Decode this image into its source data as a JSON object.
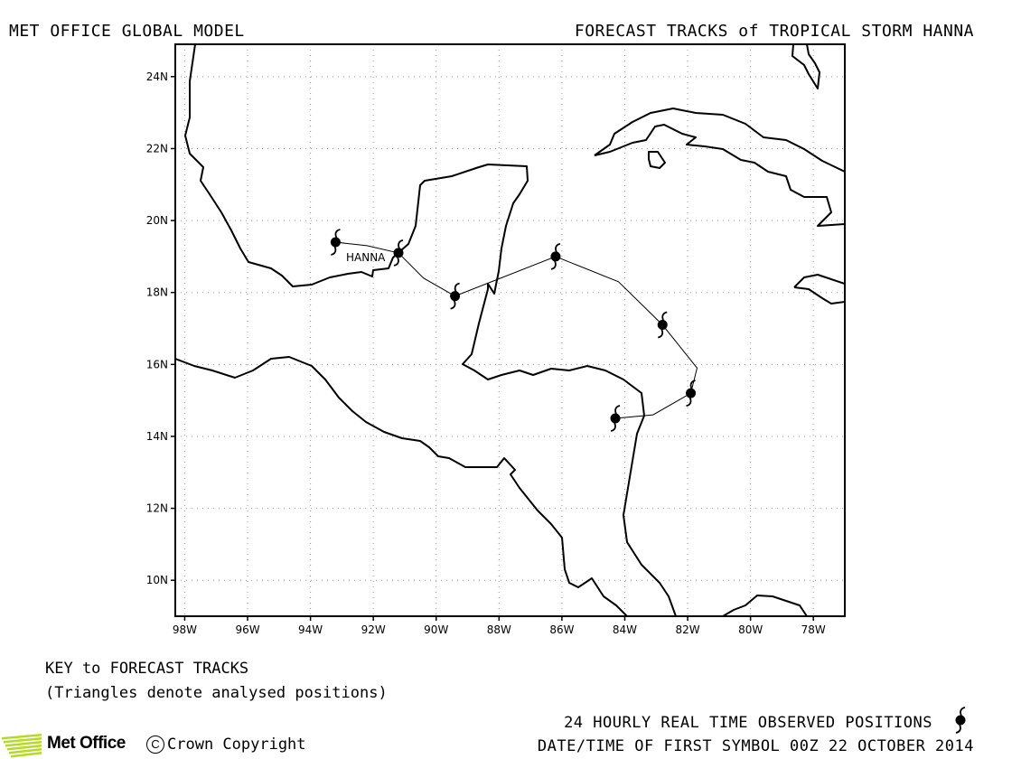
{
  "header": {
    "left_title": "MET OFFICE GLOBAL MODEL",
    "right_title": "FORECAST TRACKS of TROPICAL STORM HANNA"
  },
  "map": {
    "lon_range": [
      -98.3,
      -77.0
    ],
    "lat_range": [
      9.0,
      24.9
    ],
    "grid": true,
    "lat_ticks": [
      {
        "value": 24,
        "label": "24N"
      },
      {
        "value": 22,
        "label": "22N"
      },
      {
        "value": 20,
        "label": "20N"
      },
      {
        "value": 18,
        "label": "18N"
      },
      {
        "value": 16,
        "label": "16N"
      },
      {
        "value": 14,
        "label": "14N"
      },
      {
        "value": 12,
        "label": "12N"
      },
      {
        "value": 10,
        "label": "10N"
      }
    ],
    "lon_ticks": [
      {
        "value": -98,
        "label": "98W"
      },
      {
        "value": -96,
        "label": "96W"
      },
      {
        "value": -94,
        "label": "94W"
      },
      {
        "value": -92,
        "label": "92W"
      },
      {
        "value": -90,
        "label": "90W"
      },
      {
        "value": -88,
        "label": "88W"
      },
      {
        "value": -86,
        "label": "86W"
      },
      {
        "value": -84,
        "label": "84W"
      },
      {
        "value": -82,
        "label": "82W"
      },
      {
        "value": -80,
        "label": "80W"
      },
      {
        "value": -78,
        "label": "78W"
      }
    ],
    "storm_label": "HANNA",
    "observed_positions": [
      {
        "lon": -84.3,
        "lat": 14.5
      },
      {
        "lon": -81.9,
        "lat": 15.2
      },
      {
        "lon": -82.8,
        "lat": 17.1
      },
      {
        "lon": -86.2,
        "lat": 19.0
      },
      {
        "lon": -89.4,
        "lat": 17.9
      },
      {
        "lon": -91.2,
        "lat": 19.1
      },
      {
        "lon": -93.2,
        "lat": 19.4
      }
    ],
    "track_line": [
      {
        "lon": -84.3,
        "lat": 14.5
      },
      {
        "lon": -83.1,
        "lat": 14.6
      },
      {
        "lon": -81.9,
        "lat": 15.2
      },
      {
        "lon": -81.7,
        "lat": 15.9
      },
      {
        "lon": -82.8,
        "lat": 17.1
      },
      {
        "lon": -84.2,
        "lat": 18.3
      },
      {
        "lon": -86.2,
        "lat": 19.0
      },
      {
        "lon": -89.4,
        "lat": 17.9
      },
      {
        "lon": -90.4,
        "lat": 18.4
      },
      {
        "lon": -91.2,
        "lat": 19.1
      },
      {
        "lon": -92.2,
        "lat": 19.3
      },
      {
        "lon": -93.2,
        "lat": 19.4
      }
    ],
    "line_color": "#000000"
  },
  "key": {
    "heading": "KEY to FORECAST TRACKS",
    "note": "(Triangles denote analysed positions)"
  },
  "footer": {
    "observed_label": "24 HOURLY REAL TIME OBSERVED POSITIONS",
    "datetime_label": "DATE/TIME OF FIRST SYMBOL 00Z 22 OCTOBER 2014",
    "logo_text": "Met Office",
    "copyright_symbol": "C",
    "copyright_text": "Crown Copyright",
    "logo_color": "#b4dc1e"
  }
}
